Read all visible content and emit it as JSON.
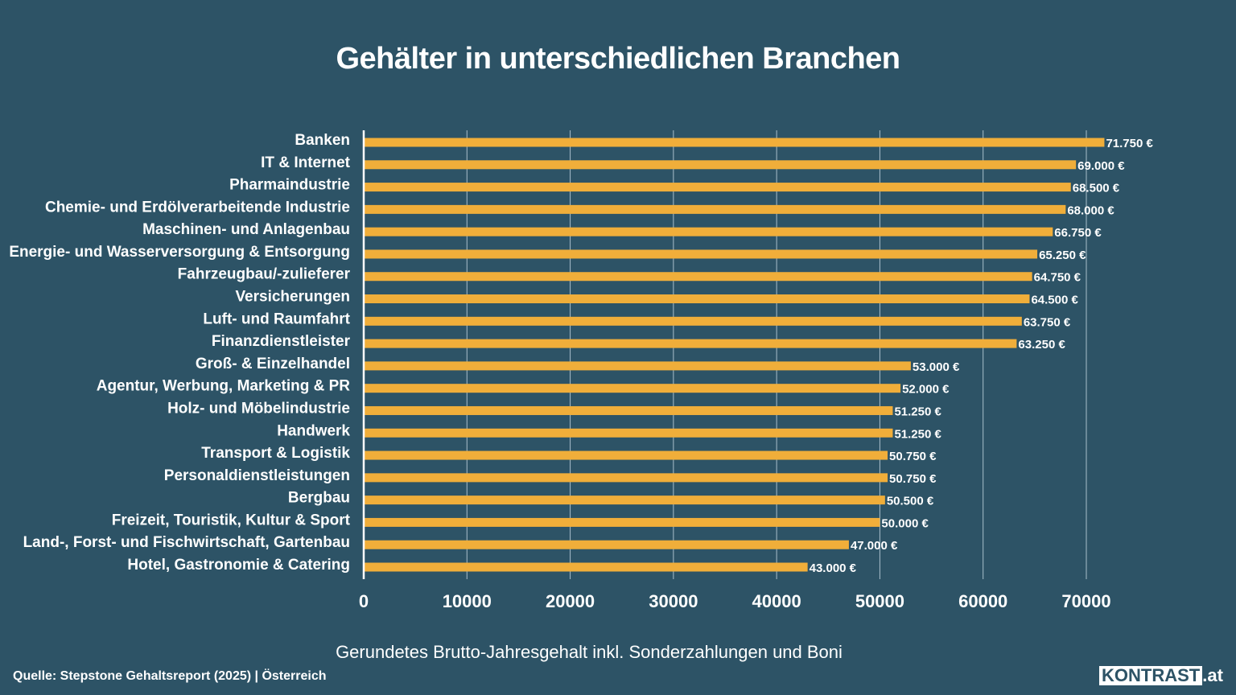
{
  "chart_data": {
    "type": "bar",
    "orientation": "horizontal",
    "title": "Gehälter in unterschiedlichen Branchen",
    "xlabel": "Gerundetes Brutto-Jahresgehalt inkl. Sonderzahlungen und Boni",
    "ylabel": "",
    "xlim": [
      0,
      70000
    ],
    "xticks": [
      "0",
      "10000",
      "20000",
      "30000",
      "40000",
      "50000",
      "60000",
      "70000"
    ],
    "grid": true,
    "bar_color": "#f0ae3a",
    "categories": [
      "Banken",
      "IT & Internet",
      "Pharmaindustrie",
      "Chemie- und Erdölverarbeitende Industrie",
      "Maschinen- und Anlagenbau",
      "Energie- und Wasserversorgung & Entsorgung",
      "Fahrzeugbau/-zulieferer",
      "Versicherungen",
      "Luft- und Raumfahrt",
      "Finanzdienstleister",
      "Groß- & Einzelhandel",
      "Agentur, Werbung, Marketing & PR",
      "Holz- und Möbelindustrie",
      "Handwerk",
      "Transport & Logistik",
      "Personaldienstleistungen",
      "Bergbau",
      "Freizeit, Touristik, Kultur & Sport",
      "Land-, Forst- und Fischwirtschaft, Gartenbau",
      "Hotel, Gastronomie & Catering"
    ],
    "values": [
      71750,
      69000,
      68500,
      68000,
      66750,
      65250,
      64750,
      64500,
      63750,
      63250,
      53000,
      52000,
      51250,
      51250,
      50750,
      50750,
      50500,
      50000,
      47000,
      43000
    ],
    "data_labels": [
      "71.750 €",
      "69.000 €",
      "68.500 €",
      "68.000 €",
      "66.750 €",
      "65.250 €",
      "64.750 €",
      "64.500 €",
      "63.750 €",
      "63.250 €",
      "53.000 €",
      "52.000 €",
      "51.250 €",
      "51.250 €",
      "50.750 €",
      "50.750 €",
      "50.500 €",
      "50.000 €",
      "47.000 €",
      "43.000 €"
    ]
  },
  "footer": {
    "source": "Quelle: Stepstone Gehaltsreport (2025) | Österreich",
    "logo_main": "KONTRAST",
    "logo_suffix": ".at"
  },
  "colors": {
    "background": "#2d5366",
    "bar": "#f0ae3a"
  }
}
